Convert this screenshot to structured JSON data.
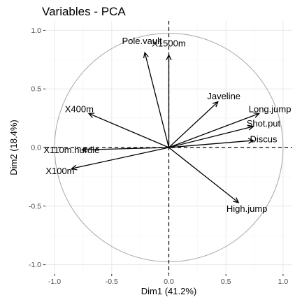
{
  "chart_data": {
    "type": "scatter",
    "title": "Variables - PCA",
    "xlabel": "Dim1 (41.2%)",
    "ylabel": "Dim2 (18.4%)",
    "xlim": [
      -1.08,
      1.08
    ],
    "ylim": [
      -1.08,
      1.08
    ],
    "xticks": [
      -1.0,
      -0.5,
      0.0,
      0.5,
      1.0
    ],
    "xtick_labels": [
      "-1.0",
      "-0.5",
      "0.0",
      "0.5",
      "1.0"
    ],
    "yticks": [
      -1.0,
      -0.5,
      0.0,
      0.5,
      1.0
    ],
    "ytick_labels": [
      "-1.0",
      "-0.5",
      "0.0",
      "0.5",
      "1.0"
    ],
    "grid": true,
    "unit_circle": true,
    "variables": [
      {
        "name": "X100m",
        "x": -0.85,
        "y": -0.18
      },
      {
        "name": "Long.jump",
        "x": 0.79,
        "y": 0.29
      },
      {
        "name": "Shot.put",
        "x": 0.74,
        "y": 0.18
      },
      {
        "name": "High.jump",
        "x": 0.61,
        "y": -0.47
      },
      {
        "name": "X400m",
        "x": -0.7,
        "y": 0.29
      },
      {
        "name": "X110m.hurdle",
        "x": -0.76,
        "y": -0.02
      },
      {
        "name": "Discus",
        "x": 0.74,
        "y": 0.06
      },
      {
        "name": "Pole.vault",
        "x": -0.21,
        "y": 0.81
      },
      {
        "name": "Javeline",
        "x": 0.43,
        "y": 0.39
      },
      {
        "name": "X1500m",
        "x": 0.0,
        "y": 0.79
      }
    ]
  }
}
